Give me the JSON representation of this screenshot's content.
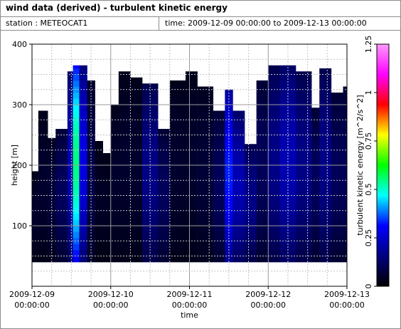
{
  "header": {
    "title": "wind data (derived) - turbulent kinetic energy",
    "station_label": "station : METEOCAT1",
    "time_label": "time: 2009-12-09 00:00:00 to 2009-12-13 00:00:00"
  },
  "chart_data": {
    "type": "heatmap",
    "title": "wind data (derived) - turbulent kinetic energy",
    "xlabel": "time",
    "ylabel": "height [m]",
    "colorbar_label": "turbulent kinetic energy [m^2/s^2]",
    "x_ticks": [
      {
        "line1": "2009-12-09",
        "line2": "00:00:00"
      },
      {
        "line1": "2009-12-10",
        "line2": "00:00:00"
      },
      {
        "line1": "2009-12-11",
        "line2": "00:00:00"
      },
      {
        "line1": "2009-12-12",
        "line2": "00:00:00"
      },
      {
        "line1": "2009-12-13",
        "line2": "00:00:00"
      }
    ],
    "x_range_days": [
      0,
      4
    ],
    "ylim": [
      0,
      400
    ],
    "y_ticks": [
      100,
      200,
      300,
      400
    ],
    "colorbar_range": [
      0,
      1.25
    ],
    "colorbar_ticks": [
      0,
      0.25,
      0.5,
      0.75,
      1,
      1.25
    ],
    "colorbar_tick_labels": [
      "0",
      "0.25",
      "0.5",
      "0.75",
      "1",
      "1.25"
    ],
    "colormap": [
      "#000000",
      "#00007f",
      "#0000ff",
      "#00ffff",
      "#00ff00",
      "#ffff00",
      "#ff0000",
      "#ff00ff",
      "#ff99ff"
    ],
    "grid": true,
    "data_base_height": 40,
    "bin_height": 10,
    "profiles": [
      {
        "start": 0.0,
        "top": 190,
        "tke": 0.05
      },
      {
        "start": 0.08,
        "top": 290,
        "tke": 0.05
      },
      {
        "start": 0.2,
        "top": 245,
        "tke": 0.06
      },
      {
        "start": 0.3,
        "top": 260,
        "tke": 0.1
      },
      {
        "start": 0.45,
        "top": 355,
        "tke": 0.2
      },
      {
        "start": 0.52,
        "top": 365,
        "tke": 0.5
      },
      {
        "start": 0.6,
        "top": 365,
        "tke": 0.25
      },
      {
        "start": 0.7,
        "top": 340,
        "tke": 0.08
      },
      {
        "start": 0.8,
        "top": 240,
        "tke": 0.04
      },
      {
        "start": 0.9,
        "top": 220,
        "tke": 0.04
      },
      {
        "start": 1.0,
        "top": 300,
        "tke": 0.05
      },
      {
        "start": 1.1,
        "top": 355,
        "tke": 0.05
      },
      {
        "start": 1.25,
        "top": 345,
        "tke": 0.05
      },
      {
        "start": 1.4,
        "top": 335,
        "tke": 0.15
      },
      {
        "start": 1.6,
        "top": 260,
        "tke": 0.1
      },
      {
        "start": 1.75,
        "top": 340,
        "tke": 0.05
      },
      {
        "start": 1.95,
        "top": 355,
        "tke": 0.05
      },
      {
        "start": 2.1,
        "top": 330,
        "tke": 0.06
      },
      {
        "start": 2.3,
        "top": 290,
        "tke": 0.1
      },
      {
        "start": 2.45,
        "top": 325,
        "tke": 0.3
      },
      {
        "start": 2.55,
        "top": 290,
        "tke": 0.2
      },
      {
        "start": 2.7,
        "top": 235,
        "tke": 0.15
      },
      {
        "start": 2.85,
        "top": 340,
        "tke": 0.1
      },
      {
        "start": 3.0,
        "top": 365,
        "tke": 0.15
      },
      {
        "start": 3.15,
        "top": 365,
        "tke": 0.2
      },
      {
        "start": 3.35,
        "top": 355,
        "tke": 0.15
      },
      {
        "start": 3.55,
        "top": 295,
        "tke": 0.1
      },
      {
        "start": 3.65,
        "top": 360,
        "tke": 0.15
      },
      {
        "start": 3.8,
        "top": 320,
        "tke": 0.1
      },
      {
        "start": 3.95,
        "top": 330,
        "tke": 0.1
      }
    ]
  }
}
